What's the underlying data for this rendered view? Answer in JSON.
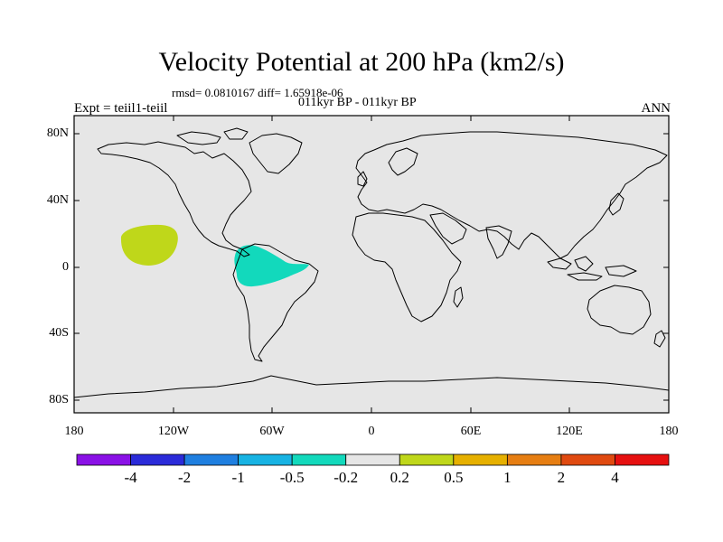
{
  "map": {
    "title": "Velocity Potential at 200 hPa (km2/s)",
    "stats": "rmsd= 0.0810167 diff= 1.65918e-06",
    "period": "011kyr BP - 011kyr BP",
    "experiment": "Expt = teiil1-teiil",
    "season": "ANN",
    "lat_labels": [
      "80N",
      "40N",
      "0",
      "40S",
      "80S"
    ],
    "lon_labels": [
      "180",
      "120W",
      "60W",
      "0",
      "60E",
      "120E",
      "180"
    ],
    "background_color": "#e6e6e6",
    "coastline_color": "#000000"
  },
  "colorbar": {
    "colors": [
      "#8a11e6",
      "#2b2bd9",
      "#1f7fe0",
      "#17b3e3",
      "#12d9bc",
      "#e6e6e6",
      "#bfd71a",
      "#e6b000",
      "#e67e12",
      "#e04a10",
      "#e61010"
    ],
    "labels": [
      "-4",
      "-2",
      "-1",
      "-0.5",
      "-0.2",
      "0.2",
      "0.5",
      "1",
      "2",
      "4"
    ]
  },
  "anomalies": [
    {
      "region": "central-pacific",
      "color": "#bfd71a",
      "level": "0.2 to 0.5"
    },
    {
      "region": "tropical-south-america",
      "color": "#12d9bc",
      "level": "-0.5 to -0.2"
    }
  ]
}
